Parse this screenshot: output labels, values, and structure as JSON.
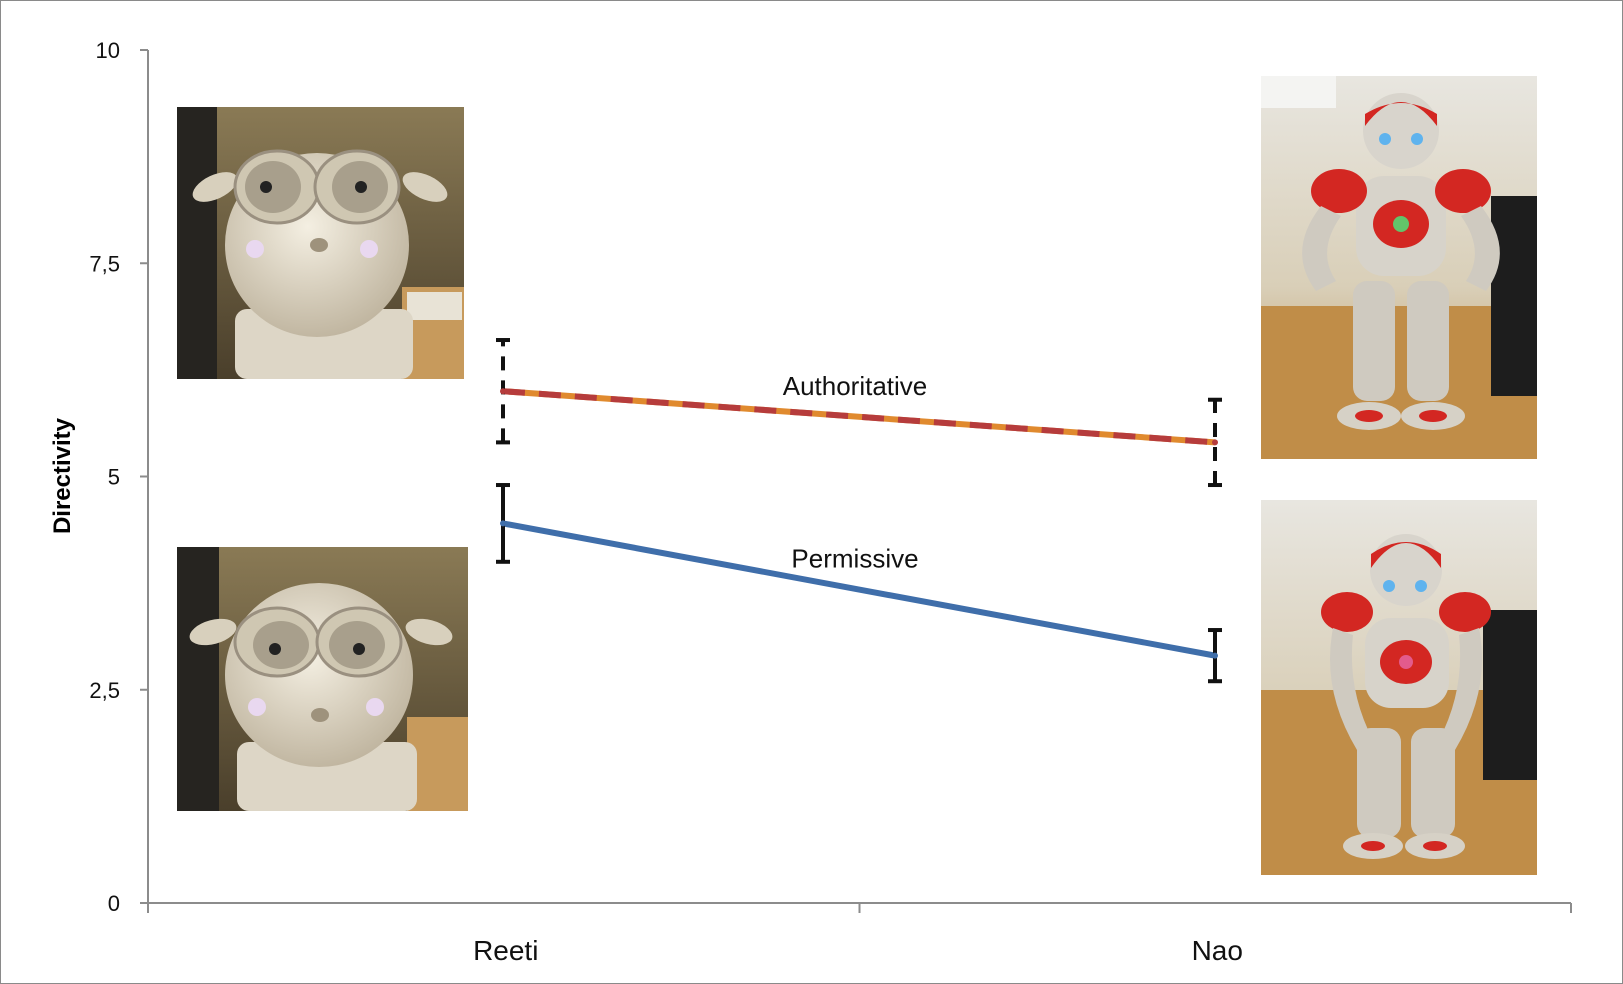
{
  "chart_data": {
    "type": "line",
    "title": "",
    "xlabel": "",
    "ylabel": "Directivity",
    "categories": [
      "Reeti",
      "Nao"
    ],
    "ylim": [
      0,
      10
    ],
    "yticks": [
      0,
      2.5,
      5,
      7.5,
      10
    ],
    "ytick_labels": [
      "0",
      "2,5",
      "5",
      "7,5",
      "10"
    ],
    "grid": false,
    "legend": "none",
    "series": [
      {
        "name": "Authoritative",
        "values": [
          6.0,
          5.4
        ],
        "error": [
          [
            5.4,
            6.6
          ],
          [
            4.9,
            5.9
          ]
        ],
        "line_style": "dashed",
        "colors": [
          "#b63c3c",
          "#e08a2e"
        ]
      },
      {
        "name": "Permissive",
        "values": [
          4.45,
          2.9
        ],
        "error": [
          [
            4.0,
            4.9
          ],
          [
            2.6,
            3.2
          ]
        ],
        "line_style": "solid",
        "colors": [
          "#3f6eaa"
        ]
      }
    ],
    "images": [
      {
        "name": "reeti-authoritative-photo",
        "icon": "robot-reeti-icon"
      },
      {
        "name": "reeti-permissive-photo",
        "icon": "robot-reeti-icon"
      },
      {
        "name": "nao-authoritative-photo",
        "icon": "robot-nao-icon"
      },
      {
        "name": "nao-permissive-photo",
        "icon": "robot-nao-icon"
      }
    ]
  }
}
